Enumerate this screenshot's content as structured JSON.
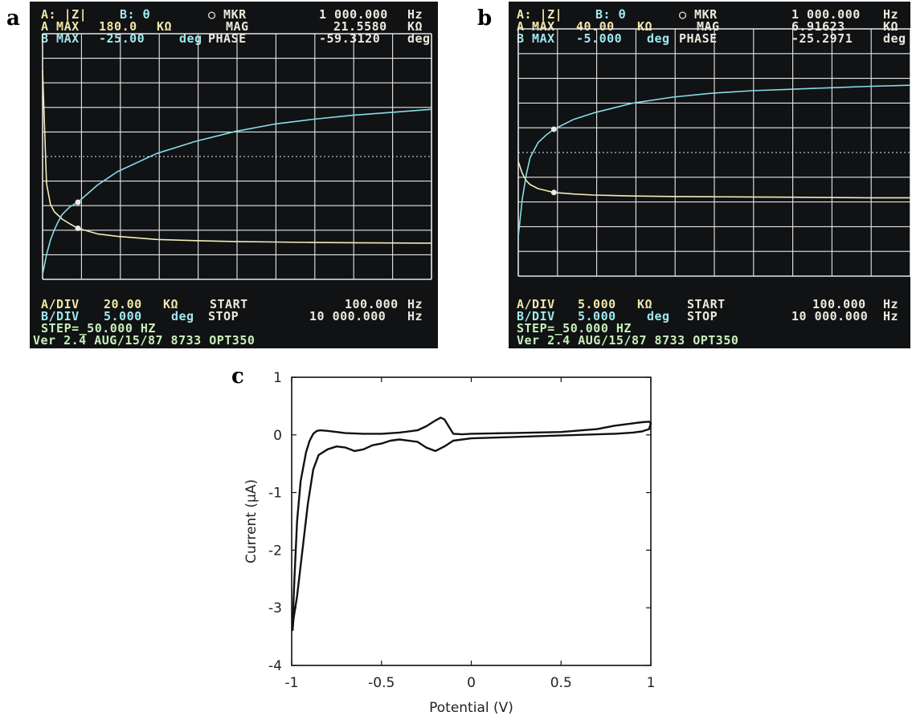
{
  "panels": [
    {
      "letter": "a",
      "header": {
        "a_label": "A: |Z|",
        "b_label": "B: θ",
        "mkr_label": "○ MKR",
        "mkr_freq": "1 000.000",
        "mkr_freq_unit": "Hz",
        "a_max_label": "A MAX",
        "a_max_value": "180.0",
        "a_max_unit": "KΩ",
        "mag_label": "MAG",
        "mag_value": "21.5580",
        "mag_unit": "KΩ",
        "b_max_label": "B MAX",
        "b_max_value": "-25.00",
        "b_max_unit": "deg",
        "phase_label": "PHASE",
        "phase_value": "-59.3120",
        "phase_unit": "deg"
      },
      "footer": {
        "a_div_label": "A/DIV",
        "a_div_value": "20.00",
        "a_div_unit": "KΩ",
        "start_label": "START",
        "start_value": "100.000",
        "start_unit": "Hz",
        "b_div_label": "B/DIV",
        "b_div_value": "5.000",
        "b_div_unit": "deg",
        "stop_label": "STOP",
        "stop_value": "10 000.000",
        "stop_unit": "Hz",
        "step": "STEP=_50.000 HZ",
        "version": "Ver 2.4 AUG/15/87 8733 OPT350"
      },
      "colors": {
        "trace_a": "#f3ecb8",
        "trace_b": "#86dde8",
        "grid": "#e6e6e6"
      }
    },
    {
      "letter": "b",
      "header": {
        "a_label": "A: |Z|",
        "b_label": "B: θ",
        "mkr_label": "○ MKR",
        "mkr_freq": "1 000.000",
        "mkr_freq_unit": "Hz",
        "a_max_label": "A MAX",
        "a_max_value": "40.00",
        "a_max_unit": "KΩ",
        "mag_label": "MAG",
        "mag_value": "6.91623",
        "mag_unit": "KΩ",
        "b_max_label": "B MAX",
        "b_max_value": "-5.000",
        "b_max_unit": "deg",
        "phase_label": "PHASE",
        "phase_value": "-25.2971",
        "phase_unit": "deg"
      },
      "footer": {
        "a_div_label": "A/DIV",
        "a_div_value": "5.000",
        "a_div_unit": "KΩ",
        "start_label": "START",
        "start_value": "100.000",
        "start_unit": "Hz",
        "b_div_label": "B/DIV",
        "b_div_value": "5.000",
        "b_div_unit": "deg",
        "stop_label": "STOP",
        "stop_value": "10 000.000",
        "stop_unit": "Hz",
        "step": "STEP=_50.000 HZ",
        "version": "Ver 2.4 AUG/15/87 8733 OPT350"
      },
      "colors": {
        "trace_a": "#f3ecb8",
        "trace_b": "#86dde8",
        "grid": "#e6e6e6"
      }
    },
    {
      "letter": "c"
    }
  ],
  "chart_data": [
    {
      "type": "line",
      "panel": "a",
      "x_range": [
        100,
        10000
      ],
      "xlabel": "",
      "ylabel": "",
      "series": [
        {
          "name": "A: |Z|",
          "unit": "kΩ",
          "ylim": [
            -20,
            180
          ],
          "x": [
            100,
            200,
            300,
            400,
            500,
            600,
            800,
            1000,
            1500,
            2000,
            3000,
            4000,
            5000,
            6000,
            7000,
            8000,
            9000,
            10000
          ],
          "values": [
            150,
            58,
            41,
            35,
            32,
            29,
            25,
            21.6,
            17,
            15,
            12.5,
            11.5,
            10.8,
            10.4,
            10,
            9.8,
            9.6,
            9.5
          ]
        },
        {
          "name": "B: θ",
          "unit": "deg",
          "ylim": [
            -75,
            -25
          ],
          "x": [
            100,
            200,
            300,
            400,
            500,
            600,
            800,
            1000,
            1500,
            2000,
            3000,
            4000,
            5000,
            6000,
            7000,
            8000,
            9000,
            10000
          ],
          "values": [
            -74,
            -70,
            -67,
            -64.9,
            -63.2,
            -61.8,
            -60.2,
            -59.3,
            -55.8,
            -53.1,
            -49.4,
            -46.9,
            -44.9,
            -43.4,
            -42.4,
            -41.6,
            -41,
            -40.4
          ]
        }
      ],
      "markers": [
        {
          "x": 1000,
          "a": 21.558,
          "b": -59.312
        }
      ]
    },
    {
      "type": "line",
      "panel": "b",
      "x_range": [
        100,
        10000
      ],
      "xlabel": "",
      "ylabel": "",
      "series": [
        {
          "name": "A: |Z|",
          "unit": "kΩ",
          "ylim": [
            -10,
            40
          ],
          "x": [
            100,
            200,
            300,
            400,
            600,
            800,
            1000,
            1500,
            2000,
            3000,
            4000,
            5000,
            6000,
            7000,
            8000,
            9000,
            10000
          ],
          "values": [
            13.2,
            10.8,
            9.3,
            8.5,
            7.7,
            7.3,
            6.92,
            6.6,
            6.4,
            6.2,
            6.1,
            6.05,
            6.0,
            5.95,
            5.9,
            5.85,
            5.85
          ]
        },
        {
          "name": "B: θ",
          "unit": "deg",
          "ylim": [
            -55,
            -5
          ],
          "x": [
            100,
            200,
            300,
            400,
            600,
            800,
            1000,
            1500,
            2000,
            3000,
            4000,
            5000,
            6000,
            7000,
            8000,
            9000,
            10000
          ],
          "values": [
            -47,
            -39.5,
            -34.5,
            -31,
            -28,
            -26.5,
            -25.3,
            -23.3,
            -22,
            -20,
            -18.8,
            -18,
            -17.5,
            -17.2,
            -16.9,
            -16.6,
            -16.4
          ]
        }
      ],
      "markers": [
        {
          "x": 1000,
          "a": 6.91623,
          "b": -25.2971
        }
      ]
    },
    {
      "type": "line",
      "panel": "c",
      "title": "",
      "xlabel": "Potential (V)",
      "ylabel": "Current (μA)",
      "xlim": [
        -1,
        1
      ],
      "ylim": [
        -4,
        1
      ],
      "xticks": [
        "-1",
        "-0.5",
        "0",
        "0.5",
        "1"
      ],
      "yticks": [
        "1",
        "0",
        "-1",
        "-2",
        "-3",
        "-4"
      ],
      "xtick_values": [
        -1,
        -0.5,
        0,
        0.5,
        1
      ],
      "ytick_values": [
        1,
        0,
        -1,
        -2,
        -3,
        -4
      ],
      "grid": false,
      "series": [
        {
          "name": "",
          "x": [
            -0.995,
            -0.985,
            -0.97,
            -0.95,
            -0.92,
            -0.9,
            -0.88,
            -0.86,
            -0.84,
            -0.8,
            -0.75,
            -0.7,
            -0.6,
            -0.5,
            -0.4,
            -0.3,
            -0.25,
            -0.2,
            -0.17,
            -0.15,
            -0.12,
            -0.1,
            -0.05,
            0,
            0.2,
            0.5,
            0.7,
            0.8,
            0.9,
            0.95,
            0.99,
            1,
            0.99,
            0.95,
            0.9,
            0.8,
            0.6,
            0.4,
            0.2,
            0,
            -0.1,
            -0.15,
            -0.2,
            -0.25,
            -0.3,
            -0.4,
            -0.45,
            -0.5,
            -0.55,
            -0.6,
            -0.65,
            -0.7,
            -0.75,
            -0.8,
            -0.85,
            -0.88,
            -0.91,
            -0.94,
            -0.97,
            -0.99,
            -0.995
          ],
          "values": [
            -3.3,
            -2.5,
            -1.5,
            -0.8,
            -0.3,
            -0.1,
            0.02,
            0.07,
            0.08,
            0.07,
            0.05,
            0.03,
            0.02,
            0.02,
            0.04,
            0.08,
            0.15,
            0.25,
            0.3,
            0.27,
            0.12,
            0.02,
            0.01,
            0.02,
            0.03,
            0.05,
            0.1,
            0.16,
            0.2,
            0.22,
            0.23,
            0.2,
            0.1,
            0.06,
            0.04,
            0.02,
            0,
            -0.02,
            -0.04,
            -0.06,
            -0.1,
            -0.2,
            -0.28,
            -0.22,
            -0.12,
            -0.08,
            -0.1,
            -0.15,
            -0.18,
            -0.25,
            -0.28,
            -0.22,
            -0.2,
            -0.25,
            -0.35,
            -0.6,
            -1.2,
            -2,
            -2.8,
            -3.2,
            -3.4
          ]
        }
      ]
    }
  ]
}
